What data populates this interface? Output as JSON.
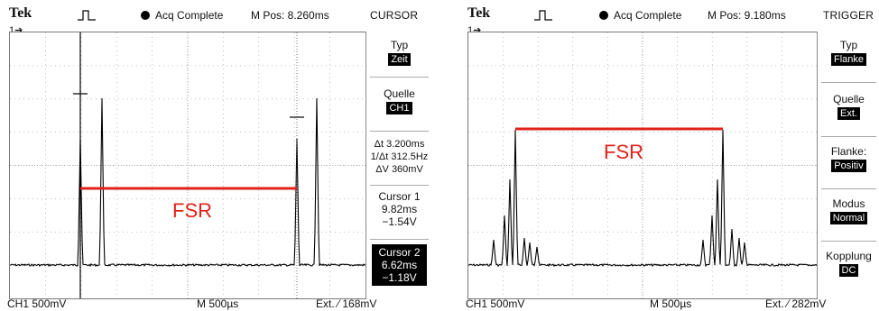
{
  "left": {
    "brand": "Tek",
    "ch_marker": "1",
    "status": "Acq Complete",
    "mpos": "M Pos: 8.260ms",
    "menu_title": "CURSOR",
    "menu": {
      "typ_label": "Typ",
      "typ_value": "Zeit",
      "quelle_label": "Quelle",
      "quelle_value": "CH1",
      "delta_t": "Δt 3.200ms",
      "inv_delta_t": "1/Δt 312.5Hz",
      "delta_v": "ΔV 360mV",
      "cursor1_label": "Cursor 1",
      "cursor1_time": "9.82ms",
      "cursor1_volt": "−1.54V",
      "cursor2_label": "Cursor 2",
      "cursor2_time": "6.62ms",
      "cursor2_volt": "−1.18V"
    },
    "footer_ch": "CH1  500mV",
    "footer_time": "M 500µs",
    "footer_trig": "Ext. ⁄  168mV",
    "annotation": "FSR"
  },
  "right": {
    "brand": "Tek",
    "ch_marker": "1",
    "status": "Acq Complete",
    "mpos": "M Pos: 9.180ms",
    "menu_title": "TRIGGER",
    "menu": {
      "typ_label": "Typ",
      "typ_value": "Flanke",
      "quelle_label": "Quelle",
      "quelle_value": "Ext.",
      "flanke_label": "Flanke:",
      "flanke_value": "Positiv",
      "modus_label": "Modus",
      "modus_value": "Normal",
      "kopplung_label": "Kopplung",
      "kopplung_value": "DC"
    },
    "footer_ch": "CH1  500mV",
    "footer_time": "M 500µs",
    "footer_trig": "Ext. ⁄  282mV",
    "annotation": "FSR"
  },
  "colors": {
    "annotation": "#e0221b",
    "trace": "#000000",
    "grid": "#9a9a9a"
  }
}
